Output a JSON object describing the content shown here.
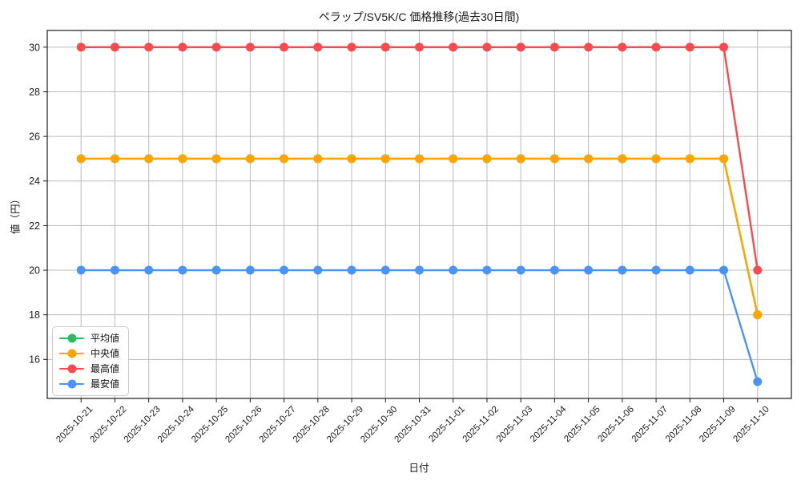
{
  "chart_data": {
    "type": "line",
    "title": "ペラップ/SV5K/C 価格推移(過去30日間)",
    "xlabel": "日付",
    "ylabel": "値（円）",
    "categories": [
      "2025-10-21",
      "2025-10-22",
      "2025-10-23",
      "2025-10-24",
      "2025-10-25",
      "2025-10-26",
      "2025-10-27",
      "2025-10-28",
      "2025-10-29",
      "2025-10-30",
      "2025-10-31",
      "2025-11-01",
      "2025-11-02",
      "2025-11-03",
      "2025-11-04",
      "2025-11-05",
      "2025-11-06",
      "2025-11-07",
      "2025-11-08",
      "2025-11-09",
      "2025-11-10"
    ],
    "series": [
      {
        "key": "average",
        "name": "平均値",
        "color": "#2eba5e",
        "values": [
          25,
          25,
          25,
          25,
          25,
          25,
          25,
          25,
          25,
          25,
          25,
          25,
          25,
          25,
          25,
          25,
          25,
          25,
          25,
          25,
          18
        ]
      },
      {
        "key": "median",
        "name": "中央値",
        "color": "#ffa502",
        "values": [
          25,
          25,
          25,
          25,
          25,
          25,
          25,
          25,
          25,
          25,
          25,
          25,
          25,
          25,
          25,
          25,
          25,
          25,
          25,
          25,
          18
        ]
      },
      {
        "key": "max",
        "name": "最高値",
        "color": "#f94b4f",
        "values": [
          30,
          30,
          30,
          30,
          30,
          30,
          30,
          30,
          30,
          30,
          30,
          30,
          30,
          30,
          30,
          30,
          30,
          30,
          30,
          30,
          20
        ]
      },
      {
        "key": "min",
        "name": "最安値",
        "color": "#4b93f5",
        "values": [
          20,
          20,
          20,
          20,
          20,
          20,
          20,
          20,
          20,
          20,
          20,
          20,
          20,
          20,
          20,
          20,
          20,
          20,
          20,
          20,
          15
        ]
      }
    ],
    "yticks": [
      16,
      18,
      20,
      22,
      24,
      26,
      28,
      30
    ],
    "ylim": [
      14.25,
      30.75
    ],
    "grid": true,
    "grid_color": "#bbbbbb",
    "axis_color": "#1a1a1a",
    "legend_position": "lower-left",
    "x_tick_rotation": 45
  }
}
